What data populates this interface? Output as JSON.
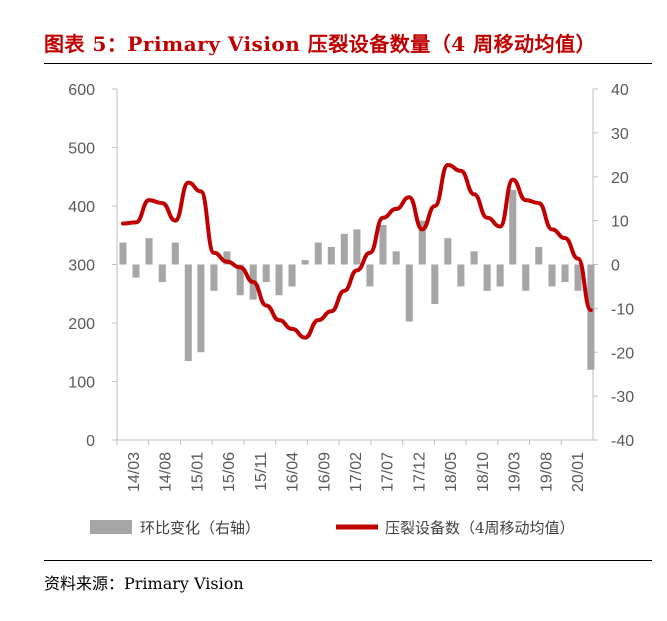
{
  "title": "图表 5：Primary Vision 压裂设备数量（4 周移动均值）",
  "source": "资料来源：Primary Vision",
  "colors": {
    "title": "#c00000",
    "bar": "#a6a6a6",
    "line": "#c00000",
    "axis": "#bfbfbf",
    "tick": "#595959"
  },
  "chart_data": {
    "type": "bar+line",
    "title": "Primary Vision 压裂设备数量（4 周移动均值）",
    "x_tick_labels": [
      "14/03",
      "14/08",
      "15/01",
      "15/06",
      "15/11",
      "16/04",
      "16/09",
      "17/02",
      "17/07",
      "17/12",
      "18/05",
      "18/10",
      "19/03",
      "19/08",
      "20/01"
    ],
    "y_left": {
      "min": 0,
      "max": 600,
      "ticks": [
        0,
        100,
        200,
        300,
        400,
        500,
        600
      ]
    },
    "y_right": {
      "min": -40,
      "max": 40,
      "ticks": [
        -40,
        -30,
        -20,
        -10,
        0,
        10,
        20,
        30,
        40
      ]
    },
    "legend": {
      "position": "bottom"
    },
    "series": [
      {
        "name": "环比变化（右轴）",
        "type": "bar",
        "axis": "right",
        "x": [
          "2014-03",
          "2014-05",
          "2014-07",
          "2014-09",
          "2014-11",
          "2015-01",
          "2015-03",
          "2015-05",
          "2015-07",
          "2015-09",
          "2015-11",
          "2016-01",
          "2016-03",
          "2016-05",
          "2016-07",
          "2016-09",
          "2016-11",
          "2017-01",
          "2017-03",
          "2017-05",
          "2017-07",
          "2017-09",
          "2017-11",
          "2018-01",
          "2018-03",
          "2018-05",
          "2018-07",
          "2018-09",
          "2018-11",
          "2019-01",
          "2019-03",
          "2019-05",
          "2019-07",
          "2019-09",
          "2019-11",
          "2020-01",
          "2020-03"
        ],
        "values": [
          5,
          -3,
          6,
          -4,
          5,
          -22,
          -20,
          -6,
          3,
          -7,
          -8,
          -4,
          -7,
          -5,
          1,
          5,
          4,
          7,
          8,
          -5,
          9,
          3,
          -13,
          10,
          -9,
          6,
          -5,
          3,
          -6,
          -5,
          17,
          -6,
          4,
          -5,
          -4,
          -6,
          -24
        ]
      },
      {
        "name": "压裂设备数（4周移动均值）",
        "type": "line",
        "axis": "left",
        "x": [
          "2014-03",
          "2014-05",
          "2014-07",
          "2014-09",
          "2014-11",
          "2015-01",
          "2015-03",
          "2015-05",
          "2015-07",
          "2015-09",
          "2015-11",
          "2016-01",
          "2016-03",
          "2016-05",
          "2016-07",
          "2016-09",
          "2016-11",
          "2017-01",
          "2017-03",
          "2017-05",
          "2017-07",
          "2017-09",
          "2017-11",
          "2018-01",
          "2018-03",
          "2018-05",
          "2018-07",
          "2018-09",
          "2018-11",
          "2019-01",
          "2019-03",
          "2019-05",
          "2019-07",
          "2019-09",
          "2019-11",
          "2020-01",
          "2020-03"
        ],
        "values": [
          370,
          372,
          410,
          405,
          375,
          440,
          425,
          320,
          305,
          295,
          270,
          230,
          205,
          190,
          175,
          205,
          220,
          255,
          290,
          320,
          380,
          395,
          415,
          360,
          400,
          470,
          460,
          420,
          380,
          365,
          445,
          410,
          405,
          360,
          345,
          310,
          222
        ]
      }
    ]
  },
  "legend": {
    "bar_label": "环比变化（右轴）",
    "line_label": "压裂设备数（4周移动均值）"
  }
}
